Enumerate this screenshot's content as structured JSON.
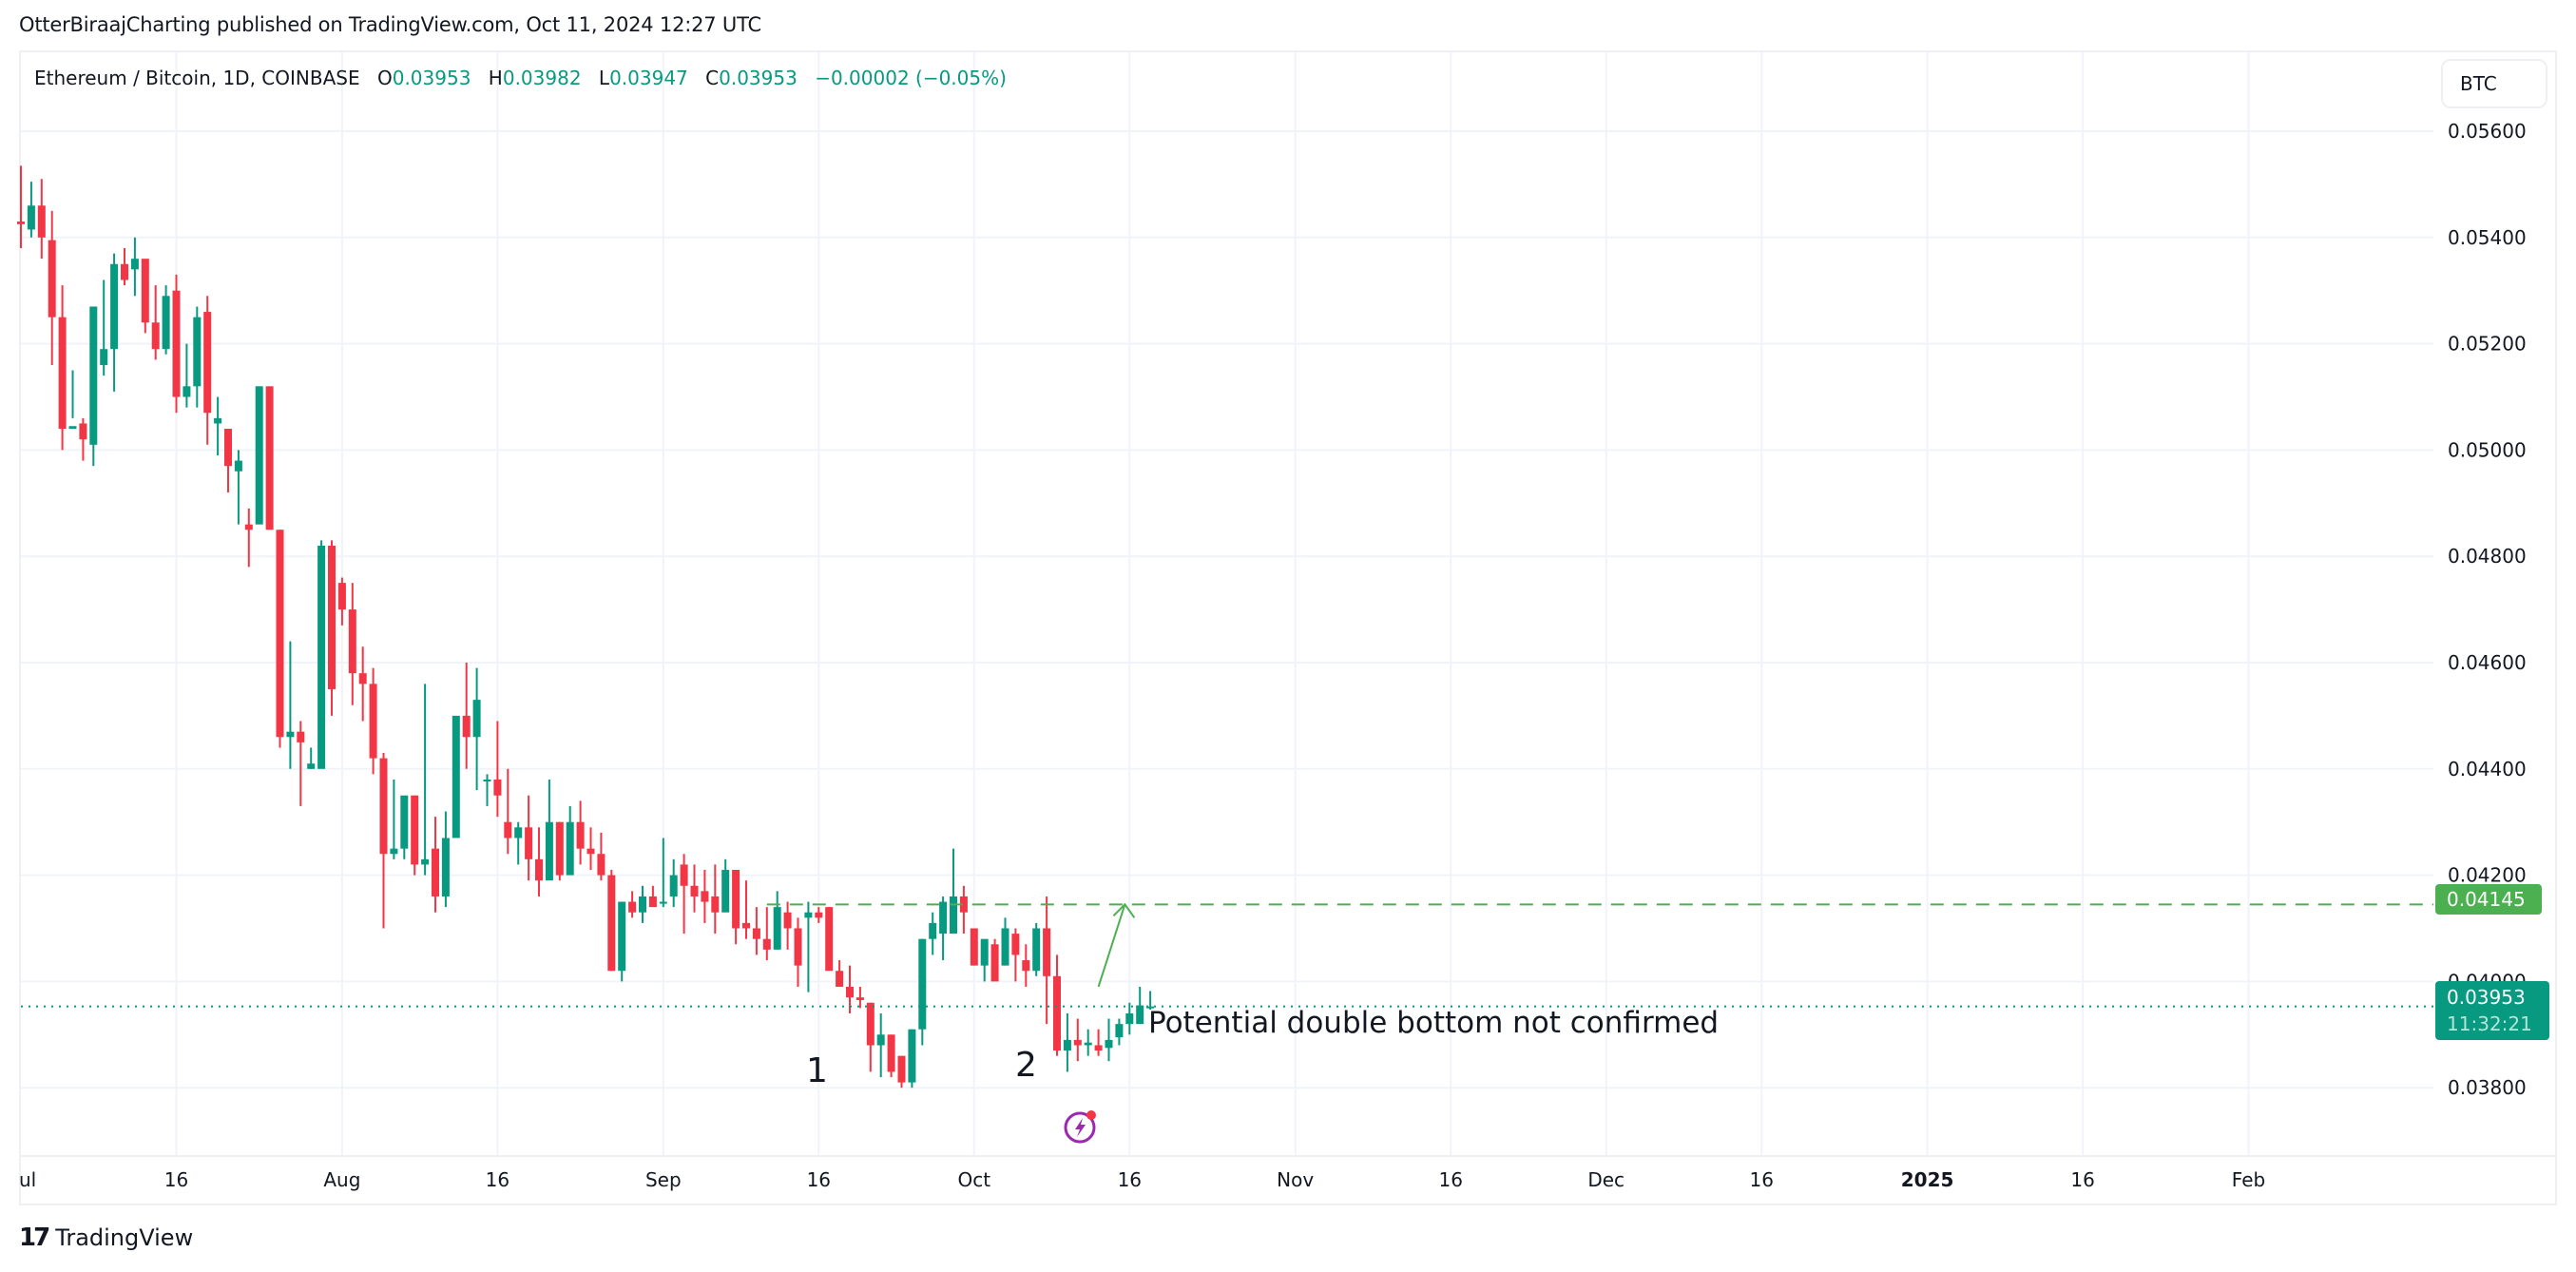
{
  "header": {
    "published_text": "OtterBiraajCharting published on TradingView.com, Oct 11, 2024 12:27 UTC"
  },
  "legend": {
    "symbol": "Ethereum / Bitcoin, 1D, COINBASE",
    "open_label": "O",
    "open": "0.03953",
    "high_label": "H",
    "high": "0.03982",
    "low_label": "L",
    "low": "0.03947",
    "close_label": "C",
    "close": "0.03953",
    "change": "−0.00002 (−0.05%)"
  },
  "currency_button": {
    "label": "BTC"
  },
  "price_tags": {
    "target": {
      "value": "0.04145",
      "color": "#4caf50"
    },
    "last": {
      "value": "0.03953",
      "countdown": "11:32:21",
      "color": "#089981"
    }
  },
  "annotations": {
    "text": "Potential double bottom not confirmed",
    "label_1": "1",
    "label_2": "2"
  },
  "footer": {
    "brand": "TradingView",
    "logo_icon": "tradingview-logo-icon"
  },
  "colors": {
    "up": "#089981",
    "down": "#f23645",
    "target_line": "#4caf50",
    "grid": "#f0f3fa",
    "bolt_icon": "#9c27b0"
  },
  "chart_data": {
    "type": "candlestick",
    "title": "Ethereum / Bitcoin, 1D, COINBASE",
    "xlabel": "",
    "ylabel": "BTC",
    "ylim": [
      0.0368,
      0.0569
    ],
    "y_ticks": [
      "0.05600",
      "0.05400",
      "0.05200",
      "0.05000",
      "0.04800",
      "0.04600",
      "0.04400",
      "0.04200",
      "0.04000",
      "0.03800"
    ],
    "x_ticks": [
      {
        "label": "Jul",
        "day": 0
      },
      {
        "label": "16",
        "day": 15
      },
      {
        "label": "Aug",
        "day": 31
      },
      {
        "label": "16",
        "day": 46
      },
      {
        "label": "Sep",
        "day": 62
      },
      {
        "label": "16",
        "day": 77
      },
      {
        "label": "Oct",
        "day": 92
      },
      {
        "label": "16",
        "day": 107
      },
      {
        "label": "Nov",
        "day": 123
      },
      {
        "label": "16",
        "day": 138
      },
      {
        "label": "Dec",
        "day": 153
      },
      {
        "label": "16",
        "day": 168
      },
      {
        "label": "2025",
        "day": 184,
        "bold": true
      },
      {
        "label": "16",
        "day": 199
      },
      {
        "label": "Feb",
        "day": 215
      }
    ],
    "start_date": "2024-07-01",
    "candles": [
      [
        0.0543,
        0.05535,
        0.0538,
        0.05425
      ],
      [
        0.05415,
        0.05505,
        0.054,
        0.0546
      ],
      [
        0.0546,
        0.0551,
        0.0536,
        0.054
      ],
      [
        0.05395,
        0.0545,
        0.0516,
        0.0525
      ],
      [
        0.0525,
        0.0531,
        0.05,
        0.0504
      ],
      [
        0.0504,
        0.0515,
        0.0506,
        0.05045
      ],
      [
        0.0505,
        0.0506,
        0.0498,
        0.0502
      ],
      [
        0.0501,
        0.0526,
        0.0497,
        0.0527
      ],
      [
        0.0516,
        0.0532,
        0.0514,
        0.0519
      ],
      [
        0.0519,
        0.0537,
        0.0511,
        0.0535
      ],
      [
        0.0535,
        0.0538,
        0.0531,
        0.0532
      ],
      [
        0.0534,
        0.054,
        0.0529,
        0.0536
      ],
      [
        0.0536,
        0.0535,
        0.0522,
        0.0524
      ],
      [
        0.0524,
        0.0531,
        0.0517,
        0.0519
      ],
      [
        0.0519,
        0.0531,
        0.0518,
        0.0529
      ],
      [
        0.053,
        0.0533,
        0.0507,
        0.051
      ],
      [
        0.051,
        0.052,
        0.0508,
        0.0512
      ],
      [
        0.0512,
        0.0527,
        0.0508,
        0.0525
      ],
      [
        0.0526,
        0.0529,
        0.0501,
        0.0507
      ],
      [
        0.0505,
        0.051,
        0.0499,
        0.0506
      ],
      [
        0.0504,
        0.0504,
        0.0492,
        0.0497
      ],
      [
        0.0496,
        0.05,
        0.0486,
        0.0498
      ],
      [
        0.0486,
        0.0489,
        0.0478,
        0.0485
      ],
      [
        0.0486,
        0.0512,
        0.0492,
        0.0512
      ],
      [
        0.0512,
        0.0512,
        0.0486,
        0.0485
      ],
      [
        0.0485,
        0.0485,
        0.0444,
        0.0446
      ],
      [
        0.0446,
        0.0464,
        0.044,
        0.0447
      ],
      [
        0.0447,
        0.0449,
        0.0433,
        0.0445
      ],
      [
        0.044,
        0.0444,
        0.044,
        0.0441
      ],
      [
        0.044,
        0.0483,
        0.0441,
        0.0482
      ],
      [
        0.0482,
        0.0483,
        0.045,
        0.0455
      ],
      [
        0.0475,
        0.0476,
        0.0467,
        0.047
      ],
      [
        0.047,
        0.0475,
        0.0452,
        0.0458
      ],
      [
        0.0458,
        0.0463,
        0.0449,
        0.0456
      ],
      [
        0.0456,
        0.0459,
        0.0439,
        0.0442
      ],
      [
        0.0442,
        0.0443,
        0.041,
        0.0424
      ],
      [
        0.0424,
        0.0438,
        0.0423,
        0.0425
      ],
      [
        0.0425,
        0.0431,
        0.0423,
        0.0435
      ],
      [
        0.0435,
        0.0435,
        0.042,
        0.0422
      ],
      [
        0.0422,
        0.0456,
        0.042,
        0.0423
      ],
      [
        0.0425,
        0.0431,
        0.0413,
        0.0416
      ],
      [
        0.0416,
        0.0432,
        0.0414,
        0.0427
      ],
      [
        0.0427,
        0.0447,
        0.0442,
        0.045
      ],
      [
        0.045,
        0.046,
        0.044,
        0.0446
      ],
      [
        0.0446,
        0.0459,
        0.0436,
        0.0453
      ],
      [
        0.0438,
        0.0439,
        0.0433,
        0.0438
      ],
      [
        0.0438,
        0.0449,
        0.0431,
        0.0435
      ],
      [
        0.043,
        0.044,
        0.0424,
        0.0427
      ],
      [
        0.0427,
        0.043,
        0.0422,
        0.0429
      ],
      [
        0.0429,
        0.0435,
        0.0419,
        0.0423
      ],
      [
        0.0423,
        0.0429,
        0.0416,
        0.0419
      ],
      [
        0.0419,
        0.0438,
        0.0422,
        0.043
      ],
      [
        0.043,
        0.043,
        0.0419,
        0.042
      ],
      [
        0.042,
        0.0433,
        0.0423,
        0.043
      ],
      [
        0.043,
        0.0434,
        0.0422,
        0.0425
      ],
      [
        0.0425,
        0.0429,
        0.0421,
        0.0424
      ],
      [
        0.0424,
        0.0428,
        0.0419,
        0.042
      ],
      [
        0.042,
        0.0421,
        0.0402,
        0.0402
      ],
      [
        0.0402,
        0.0415,
        0.04,
        0.0415
      ],
      [
        0.0415,
        0.0417,
        0.0412,
        0.0413
      ],
      [
        0.0413,
        0.0418,
        0.0411,
        0.0416
      ],
      [
        0.0416,
        0.0418,
        0.0416,
        0.0414
      ],
      [
        0.0415,
        0.0427,
        0.0414,
        0.0415
      ],
      [
        0.0416,
        0.0423,
        0.0414,
        0.042
      ],
      [
        0.0422,
        0.0424,
        0.0409,
        0.0418
      ],
      [
        0.0418,
        0.0422,
        0.0413,
        0.0416
      ],
      [
        0.0417,
        0.0421,
        0.0411,
        0.0415
      ],
      [
        0.0416,
        0.0422,
        0.0409,
        0.0413
      ],
      [
        0.0413,
        0.0423,
        0.0415,
        0.0421
      ],
      [
        0.0421,
        0.0421,
        0.0407,
        0.041
      ],
      [
        0.0411,
        0.0419,
        0.0408,
        0.041
      ],
      [
        0.041,
        0.0414,
        0.0405,
        0.0408
      ],
      [
        0.0408,
        0.0414,
        0.0404,
        0.0406
      ],
      [
        0.0406,
        0.0417,
        0.0406,
        0.0414
      ],
      [
        0.0413,
        0.0415,
        0.0406,
        0.041
      ],
      [
        0.041,
        0.0412,
        0.0399,
        0.0403
      ],
      [
        0.0412,
        0.0415,
        0.0398,
        0.0413
      ],
      [
        0.0413,
        0.0414,
        0.0411,
        0.0412
      ],
      [
        0.0414,
        0.0414,
        0.0405,
        0.0402
      ],
      [
        0.0402,
        0.0404,
        0.0399,
        0.0399
      ],
      [
        0.0399,
        0.0403,
        0.0394,
        0.0397
      ],
      [
        0.0397,
        0.0399,
        0.0395,
        0.03965
      ],
      [
        0.0396,
        0.0396,
        0.0383,
        0.0388
      ],
      [
        0.0388,
        0.0394,
        0.0382,
        0.039
      ],
      [
        0.039,
        0.039,
        0.0382,
        0.0383
      ],
      [
        0.0386,
        0.0386,
        0.038,
        0.0381
      ],
      [
        0.0381,
        0.0391,
        0.038,
        0.0391
      ],
      [
        0.0391,
        0.0408,
        0.0388,
        0.0408
      ],
      [
        0.0408,
        0.0413,
        0.0405,
        0.0411
      ],
      [
        0.0409,
        0.0416,
        0.0404,
        0.0415
      ],
      [
        0.0409,
        0.0425,
        0.0409,
        0.0416
      ],
      [
        0.0416,
        0.0418,
        0.0409,
        0.0413
      ],
      [
        0.041,
        0.041,
        0.0403,
        0.0403
      ],
      [
        0.0403,
        0.0405,
        0.04,
        0.0408
      ],
      [
        0.0407,
        0.0408,
        0.0402,
        0.04
      ],
      [
        0.0403,
        0.0412,
        0.0403,
        0.041
      ],
      [
        0.0409,
        0.041,
        0.04,
        0.0405
      ],
      [
        0.0404,
        0.0407,
        0.0399,
        0.0402
      ],
      [
        0.0402,
        0.0411,
        0.0401,
        0.041
      ],
      [
        0.041,
        0.0416,
        0.0392,
        0.0401
      ],
      [
        0.0401,
        0.0405,
        0.0386,
        0.0387
      ],
      [
        0.0387,
        0.0394,
        0.0383,
        0.0389
      ],
      [
        0.0389,
        0.0393,
        0.0385,
        0.0388
      ],
      [
        0.0388,
        0.0391,
        0.0386,
        0.03885
      ],
      [
        0.0388,
        0.0391,
        0.0386,
        0.0387
      ],
      [
        0.03875,
        0.0393,
        0.0385,
        0.0389
      ],
      [
        0.03895,
        0.0393,
        0.0388,
        0.0392
      ],
      [
        0.0392,
        0.0396,
        0.039,
        0.0394
      ],
      [
        0.0392,
        0.0399,
        0.0392,
        0.03955
      ],
      [
        0.03953,
        0.03982,
        0.03947,
        0.03953
      ]
    ],
    "horizontal_lines": [
      {
        "price": 0.04145,
        "style": "dashed",
        "color": "#4caf50",
        "from_day": 72
      },
      {
        "price": 0.03953,
        "style": "dotted",
        "color": "#089981",
        "from_day": 0
      }
    ],
    "arrow": {
      "from_day": 104,
      "from_price": 0.0399,
      "to_day": 106,
      "to_price": 0.04145,
      "color": "#4caf50"
    },
    "labels": [
      {
        "text": "1",
        "day": 77,
        "price": 0.0378
      },
      {
        "text": "2",
        "day": 99,
        "price": 0.0379
      },
      {
        "text": "Potential double bottom not confirmed",
        "day": 110,
        "price": 0.0391
      }
    ],
    "last_price": 0.03953,
    "target_price": 0.04145
  }
}
